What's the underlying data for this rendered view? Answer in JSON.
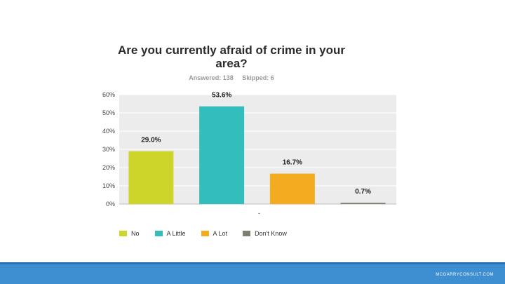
{
  "title": "Are you currently afraid of crime in your area?",
  "stats": {
    "answered": "Answered: 138",
    "skipped": "Skipped: 6"
  },
  "footer": {
    "site": "MCGARRYCONSULT.COM"
  },
  "chart_data": {
    "type": "bar",
    "categories": [
      "No",
      "A Little",
      "A Lot",
      "Don't Know"
    ],
    "values": [
      29.0,
      53.6,
      16.7,
      0.7
    ],
    "value_labels": [
      "29.0%",
      "53.6%",
      "16.7%",
      "0.7%"
    ],
    "colors": [
      "#cdd52b",
      "#33bdbd",
      "#f4ab20",
      "#7f7f73"
    ],
    "ylim": [
      0,
      60
    ],
    "yticks": [
      "0%",
      "10%",
      "20%",
      "30%",
      "40%",
      "50%",
      "60%"
    ],
    "x_tick": "-",
    "plot_background": "#ececec",
    "grid": true,
    "legend_position": "bottom"
  }
}
